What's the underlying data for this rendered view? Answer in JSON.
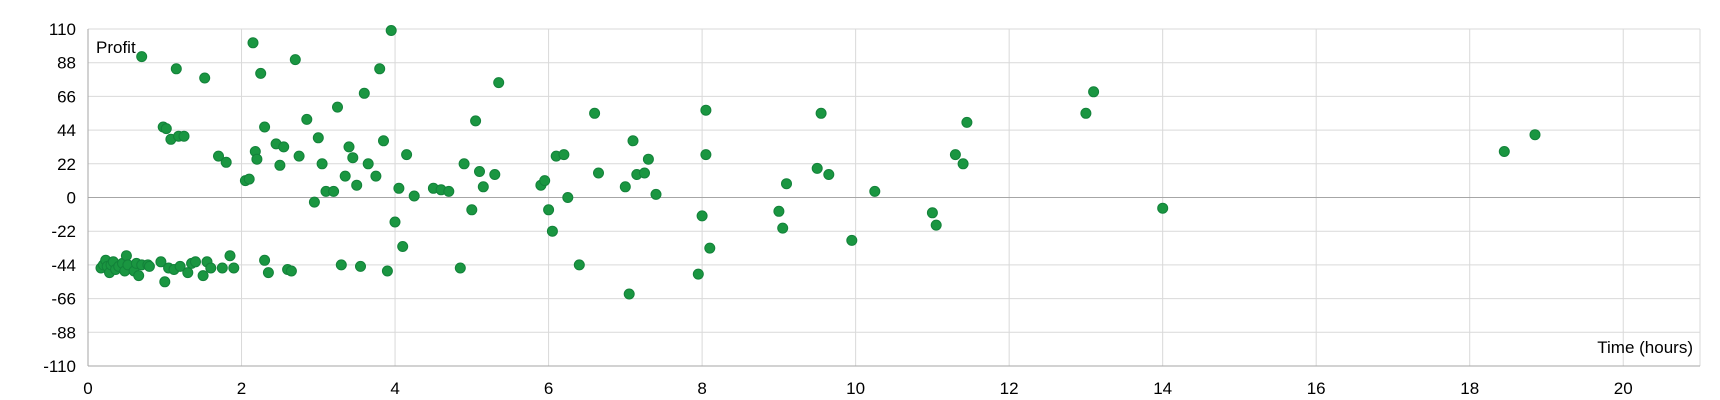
{
  "chart_data": {
    "type": "scatter",
    "xlabel": "Time (hours)",
    "ylabel": "Profit",
    "xlim": [
      0,
      21
    ],
    "ylim": [
      -110,
      110
    ],
    "xticks": [
      0,
      2,
      4,
      6,
      8,
      10,
      12,
      14,
      16,
      18,
      20
    ],
    "yticks": [
      110,
      88,
      66,
      44,
      22,
      0,
      -22,
      -44,
      -66,
      -88,
      -110
    ],
    "grid": true,
    "marker_color": "#1a9641",
    "series": [
      {
        "points": [
          [
            0.17,
            -46
          ],
          [
            0.2,
            -44
          ],
          [
            0.23,
            -41
          ],
          [
            0.25,
            -45
          ],
          [
            0.28,
            -49
          ],
          [
            0.3,
            -44
          ],
          [
            0.33,
            -42
          ],
          [
            0.36,
            -47
          ],
          [
            0.4,
            -45
          ],
          [
            0.45,
            -43
          ],
          [
            0.48,
            -48
          ],
          [
            0.5,
            -38
          ],
          [
            0.52,
            -44
          ],
          [
            0.6,
            -48
          ],
          [
            0.63,
            -43
          ],
          [
            0.66,
            -51
          ],
          [
            0.7,
            92
          ],
          [
            0.7,
            -44
          ],
          [
            0.78,
            -44
          ],
          [
            0.8,
            -45
          ],
          [
            0.95,
            -42
          ],
          [
            0.98,
            46
          ],
          [
            1.0,
            -55
          ],
          [
            1.02,
            45
          ],
          [
            1.05,
            -46
          ],
          [
            1.08,
            38
          ],
          [
            1.12,
            -47
          ],
          [
            1.15,
            84
          ],
          [
            1.18,
            40
          ],
          [
            1.2,
            -45
          ],
          [
            1.25,
            40
          ],
          [
            1.3,
            -49
          ],
          [
            1.35,
            -43
          ],
          [
            1.4,
            -42
          ],
          [
            1.5,
            -51
          ],
          [
            1.52,
            78
          ],
          [
            1.55,
            -42
          ],
          [
            1.6,
            -46
          ],
          [
            1.7,
            27
          ],
          [
            1.75,
            -46
          ],
          [
            1.8,
            23
          ],
          [
            1.85,
            -38
          ],
          [
            1.9,
            -46
          ],
          [
            2.05,
            11
          ],
          [
            2.1,
            12
          ],
          [
            2.15,
            101
          ],
          [
            2.18,
            30
          ],
          [
            2.2,
            25
          ],
          [
            2.25,
            81
          ],
          [
            2.3,
            -41
          ],
          [
            2.35,
            -49
          ],
          [
            2.3,
            46
          ],
          [
            2.45,
            35
          ],
          [
            2.5,
            21
          ],
          [
            2.55,
            33
          ],
          [
            2.6,
            -47
          ],
          [
            2.65,
            -48
          ],
          [
            2.7,
            90
          ],
          [
            2.75,
            27
          ],
          [
            2.85,
            51
          ],
          [
            2.95,
            -3
          ],
          [
            3.0,
            39
          ],
          [
            3.05,
            22
          ],
          [
            3.1,
            4
          ],
          [
            3.2,
            4
          ],
          [
            3.25,
            59
          ],
          [
            3.3,
            -44
          ],
          [
            3.35,
            14
          ],
          [
            3.4,
            33
          ],
          [
            3.45,
            26
          ],
          [
            3.5,
            8
          ],
          [
            3.55,
            -45
          ],
          [
            3.6,
            68
          ],
          [
            3.65,
            22
          ],
          [
            3.75,
            14
          ],
          [
            3.8,
            84
          ],
          [
            3.85,
            37
          ],
          [
            3.9,
            -48
          ],
          [
            3.95,
            109
          ],
          [
            4.0,
            -16
          ],
          [
            4.05,
            6
          ],
          [
            4.1,
            -32
          ],
          [
            4.15,
            28
          ],
          [
            4.25,
            1
          ],
          [
            4.5,
            6
          ],
          [
            4.6,
            5
          ],
          [
            4.7,
            4
          ],
          [
            4.85,
            -46
          ],
          [
            4.9,
            22
          ],
          [
            5.0,
            -8
          ],
          [
            5.05,
            50
          ],
          [
            5.1,
            17
          ],
          [
            5.15,
            7
          ],
          [
            5.3,
            15
          ],
          [
            5.35,
            75
          ],
          [
            5.9,
            8
          ],
          [
            5.95,
            11
          ],
          [
            6.0,
            -8
          ],
          [
            6.05,
            -22
          ],
          [
            6.1,
            27
          ],
          [
            6.2,
            28
          ],
          [
            6.25,
            0
          ],
          [
            6.4,
            -44
          ],
          [
            6.6,
            55
          ],
          [
            6.65,
            16
          ],
          [
            7.0,
            7
          ],
          [
            7.05,
            -63
          ],
          [
            7.1,
            37
          ],
          [
            7.15,
            15
          ],
          [
            7.25,
            16
          ],
          [
            7.3,
            25
          ],
          [
            7.4,
            2
          ],
          [
            7.95,
            -50
          ],
          [
            8.0,
            -12
          ],
          [
            8.05,
            57
          ],
          [
            8.05,
            28
          ],
          [
            8.1,
            -33
          ],
          [
            9.0,
            -9
          ],
          [
            9.05,
            -20
          ],
          [
            9.1,
            9
          ],
          [
            9.5,
            19
          ],
          [
            9.55,
            55
          ],
          [
            9.65,
            15
          ],
          [
            9.95,
            -28
          ],
          [
            10.25,
            4
          ],
          [
            11.0,
            -10
          ],
          [
            11.05,
            -18
          ],
          [
            11.3,
            28
          ],
          [
            11.4,
            22
          ],
          [
            11.45,
            49
          ],
          [
            13.0,
            55
          ],
          [
            13.1,
            69
          ],
          [
            14.0,
            -7
          ],
          [
            18.45,
            30
          ],
          [
            18.85,
            41
          ]
        ]
      }
    ]
  }
}
